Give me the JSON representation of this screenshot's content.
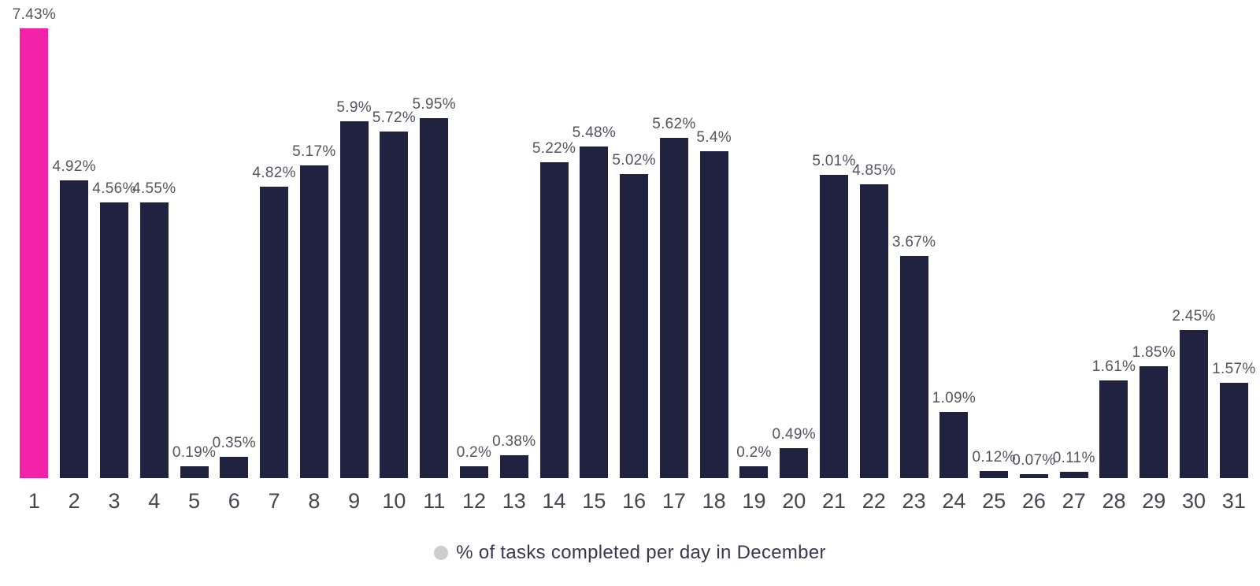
{
  "chart_data": {
    "type": "bar",
    "title": "",
    "xlabel": "",
    "ylabel": "",
    "ylim": [
      0,
      7.43
    ],
    "grid": false,
    "categories": [
      "1",
      "2",
      "3",
      "4",
      "5",
      "6",
      "7",
      "8",
      "9",
      "10",
      "11",
      "12",
      "13",
      "14",
      "15",
      "16",
      "17",
      "18",
      "19",
      "20",
      "21",
      "22",
      "23",
      "24",
      "25",
      "26",
      "27",
      "28",
      "29",
      "30",
      "31"
    ],
    "values": [
      7.43,
      4.92,
      4.56,
      4.55,
      0.19,
      0.35,
      4.82,
      5.17,
      5.9,
      5.72,
      5.95,
      0.2,
      0.38,
      5.22,
      5.48,
      5.02,
      5.62,
      5.4,
      0.2,
      0.49,
      5.01,
      4.85,
      3.67,
      1.09,
      0.12,
      0.07,
      0.11,
      1.61,
      1.85,
      2.45,
      1.57
    ],
    "value_labels": [
      "7.43%",
      "4.92%",
      "4.56%",
      "4.55%",
      "0.19%",
      "0.35%",
      "4.82%",
      "5.17%",
      "5.9%",
      "5.72%",
      "5.95%",
      "0.2%",
      "0.38%",
      "5.22%",
      "5.48%",
      "5.02%",
      "5.62%",
      "5.4%",
      "0.2%",
      "0.49%",
      "5.01%",
      "4.85%",
      "3.67%",
      "1.09%",
      "0.12%",
      "0.07%",
      "0.11%",
      "1.61%",
      "1.85%",
      "2.45%",
      "1.57%"
    ],
    "bar_color": "#212140",
    "highlight_color": "#f222a8",
    "highlight_index": 0,
    "legend": {
      "position": "bottom",
      "label": "% of tasks completed per day in December",
      "marker_color": "#cdcdcd"
    }
  }
}
